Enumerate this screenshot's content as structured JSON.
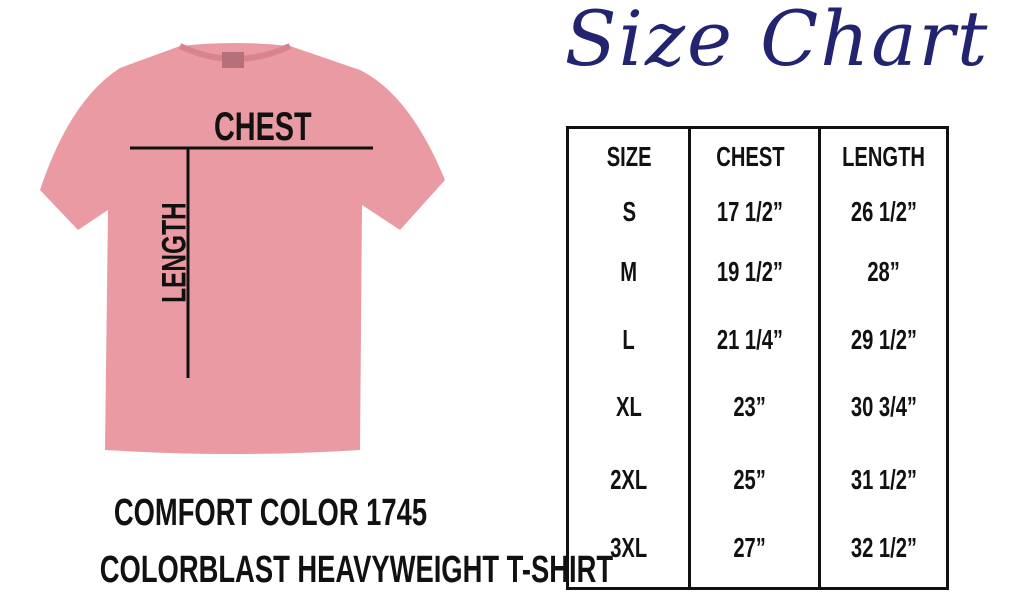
{
  "title": "Size Chart",
  "garment": {
    "color": "#e99aa3",
    "chest_label": "CHEST",
    "length_label": "LENGTH"
  },
  "footer": {
    "line1": "COMFORT COLOR 1745",
    "line2": "COLORBLAST HEAVYWEIGHT T-SHIRT"
  },
  "table": {
    "headers": [
      "SIZE",
      "CHEST",
      "LENGTH"
    ],
    "rows": [
      [
        "S",
        "17 1/2”",
        "26 1/2”"
      ],
      [
        "M",
        "19 1/2”",
        "28”"
      ],
      [
        "L",
        "21 1/4”",
        "29 1/2”"
      ],
      [
        "XL",
        "23”",
        "30 3/4”"
      ],
      [
        "2XL",
        "25”",
        "31 1/2”"
      ],
      [
        "3XL",
        "27”",
        "32 1/2”"
      ]
    ]
  },
  "colors": {
    "title": "#232470",
    "text": "#111111"
  }
}
